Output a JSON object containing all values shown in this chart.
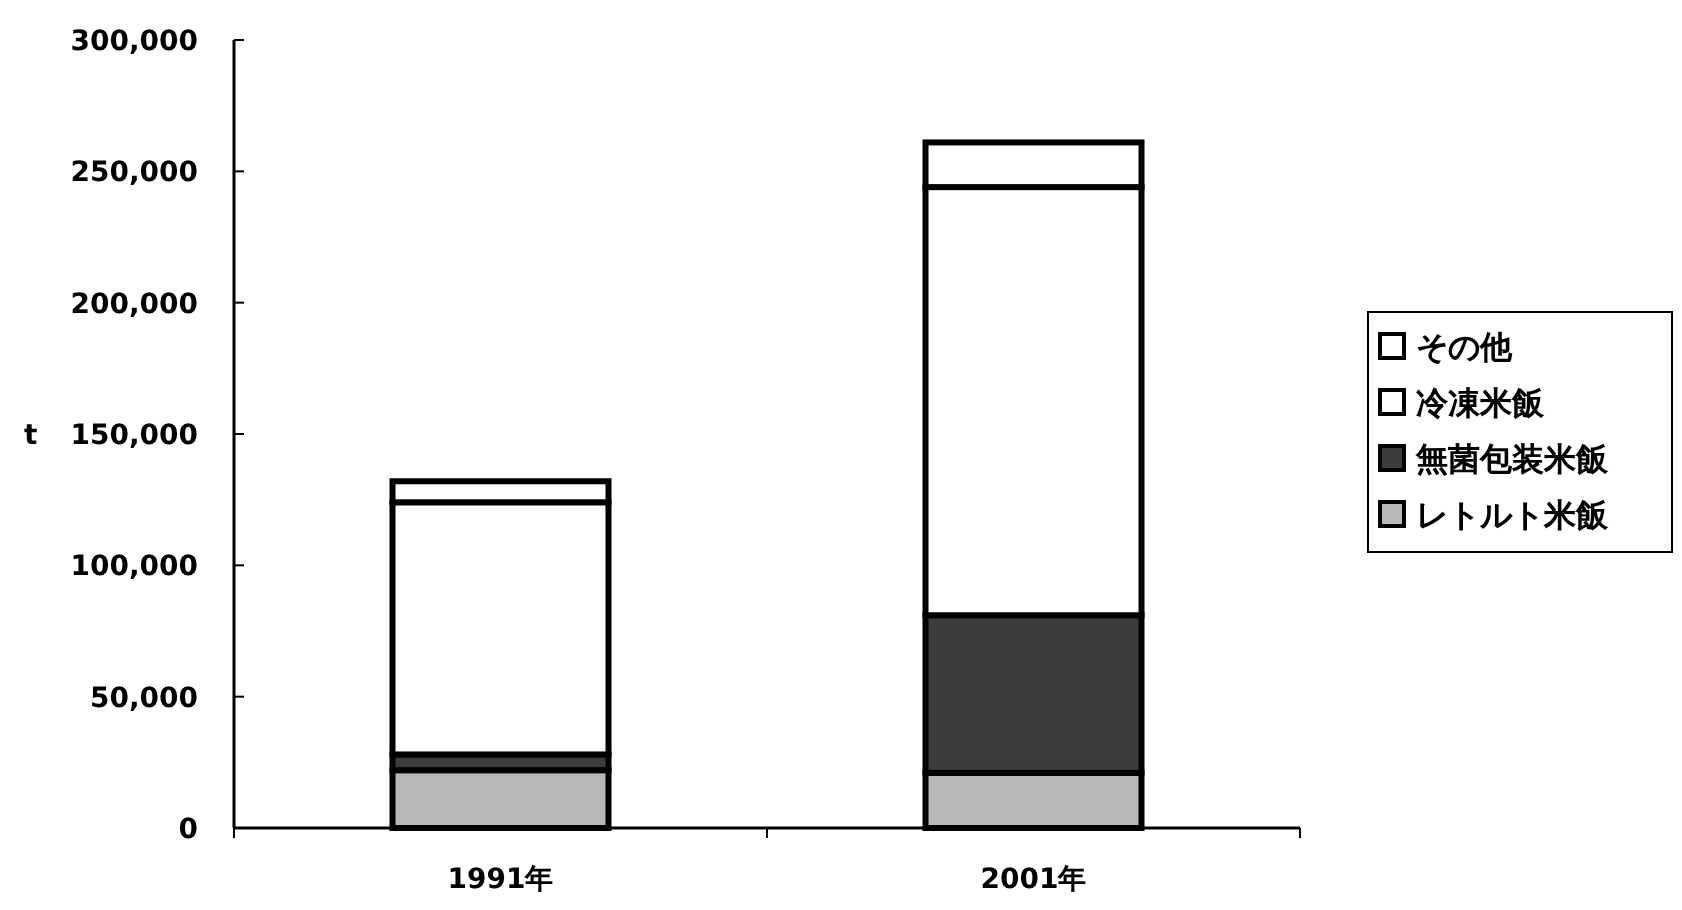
{
  "chart_data": {
    "type": "bar",
    "stacked": true,
    "ylabel": "t",
    "categories": [
      "1991年",
      "2001年"
    ],
    "series": [
      {
        "name": "レトルト米飯",
        "color": "#b8b8b8",
        "values": [
          22000,
          21000
        ]
      },
      {
        "name": "無菌包装米飯",
        "color": "#3c3c3c",
        "values": [
          6000,
          60000
        ]
      },
      {
        "name": "冷凍米飯",
        "color": "#ffffff",
        "values": [
          96000,
          163000
        ]
      },
      {
        "name": "その他",
        "color": "#ffffff",
        "values": [
          8000,
          17000
        ]
      }
    ],
    "ylim": [
      0,
      300000
    ],
    "yticks": [
      {
        "value": 0,
        "label": "0"
      },
      {
        "value": 50000,
        "label": "50,000"
      },
      {
        "value": 100000,
        "label": "100,000"
      },
      {
        "value": 150000,
        "label": "150,000"
      },
      {
        "value": 200000,
        "label": "200,000"
      },
      {
        "value": 250000,
        "label": "250,000"
      },
      {
        "value": 300000,
        "label": "300,000"
      }
    ],
    "grid": false,
    "legend": "right"
  }
}
